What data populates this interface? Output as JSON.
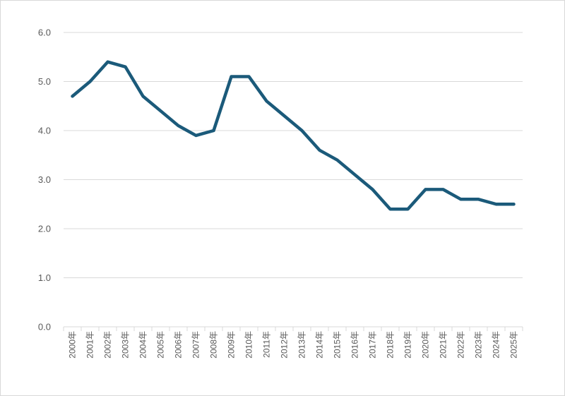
{
  "chart_data": {
    "type": "line",
    "title": "",
    "xlabel": "",
    "ylabel": "",
    "ylim": [
      0,
      6
    ],
    "y_ticks": [
      "0.0",
      "1.0",
      "2.0",
      "3.0",
      "4.0",
      "5.0",
      "6.0"
    ],
    "grid": true,
    "legend": "none",
    "categories": [
      "2000年",
      "2001年",
      "2002年",
      "2003年",
      "2004年",
      "2005年",
      "2006年",
      "2007年",
      "2008年",
      "2009年",
      "2010年",
      "2011年",
      "2012年",
      "2013年",
      "2014年",
      "2015年",
      "2016年",
      "2017年",
      "2018年",
      "2019年",
      "2020年",
      "2021年",
      "2022年",
      "2023年",
      "2024年",
      "2025年"
    ],
    "series": [
      {
        "color": "#1b5a7a",
        "values": [
          4.7,
          5.0,
          5.4,
          5.3,
          4.7,
          4.4,
          4.1,
          3.9,
          4.0,
          5.1,
          5.1,
          4.6,
          4.3,
          4.0,
          3.6,
          3.4,
          3.1,
          2.8,
          2.4,
          2.4,
          2.8,
          2.8,
          2.6,
          2.6,
          2.5,
          2.5
        ]
      }
    ]
  }
}
